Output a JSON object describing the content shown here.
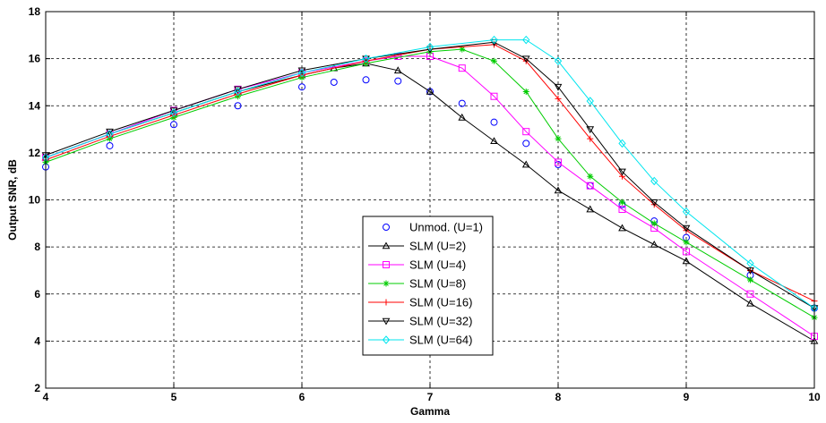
{
  "chart_data": {
    "type": "line",
    "xlabel": "Gamma",
    "ylabel": "Output SNR, dB",
    "xlim": [
      4,
      10
    ],
    "ylim": [
      2,
      18
    ],
    "xticks": [
      4,
      5,
      6,
      7,
      8,
      9,
      10
    ],
    "yticks": [
      2,
      4,
      6,
      8,
      10,
      12,
      14,
      16,
      18
    ],
    "grid": true,
    "legend_position": "center-left",
    "series": [
      {
        "name": "Unmod. (U=1)",
        "color": "#0000ff",
        "marker": "circle",
        "line": false,
        "x": [
          4.0,
          4.5,
          5.0,
          5.5,
          6.0,
          6.25,
          6.5,
          6.75,
          7.0,
          7.25,
          7.5,
          7.75,
          8.0,
          8.25,
          8.5,
          8.75,
          9.0,
          9.5,
          10.0
        ],
        "y": [
          11.4,
          12.3,
          13.2,
          14.0,
          14.8,
          15.0,
          15.1,
          15.05,
          14.6,
          14.1,
          13.3,
          12.4,
          11.5,
          10.6,
          9.8,
          9.1,
          8.4,
          6.8,
          5.4
        ]
      },
      {
        "name": "SLM (U=2)",
        "color": "#000000",
        "marker": "triangle-up",
        "line": true,
        "x": [
          4.0,
          4.5,
          5.0,
          5.5,
          6.0,
          6.25,
          6.5,
          6.75,
          7.0,
          7.25,
          7.5,
          7.75,
          8.0,
          8.25,
          8.5,
          8.75,
          9.0,
          9.5,
          10.0
        ],
        "y": [
          11.8,
          12.8,
          13.7,
          14.6,
          15.3,
          15.6,
          15.8,
          15.5,
          14.6,
          13.5,
          12.5,
          11.5,
          10.4,
          9.6,
          8.8,
          8.1,
          7.4,
          5.6,
          4.0
        ]
      },
      {
        "name": "SLM (U=4)",
        "color": "#ff00ff",
        "marker": "square",
        "line": true,
        "x": [
          4.0,
          4.5,
          5.0,
          5.5,
          6.0,
          6.5,
          6.75,
          7.0,
          7.25,
          7.5,
          7.75,
          8.0,
          8.25,
          8.5,
          8.75,
          9.0,
          9.5,
          10.0
        ],
        "y": [
          11.8,
          12.8,
          13.8,
          14.7,
          15.4,
          15.9,
          16.1,
          16.1,
          15.6,
          14.4,
          12.9,
          11.6,
          10.6,
          9.6,
          8.8,
          7.8,
          6.0,
          4.2
        ]
      },
      {
        "name": "SLM (U=8)",
        "color": "#00cc00",
        "marker": "star",
        "line": true,
        "x": [
          4.0,
          4.5,
          5.0,
          5.5,
          6.0,
          6.5,
          7.0,
          7.25,
          7.5,
          7.75,
          8.0,
          8.25,
          8.5,
          8.75,
          9.0,
          9.5,
          10.0
        ],
        "y": [
          11.6,
          12.6,
          13.5,
          14.4,
          15.2,
          15.8,
          16.3,
          16.4,
          15.9,
          14.6,
          12.6,
          11.0,
          9.9,
          9.0,
          8.2,
          6.6,
          5.0
        ]
      },
      {
        "name": "SLM (U=16)",
        "color": "#ff0000",
        "marker": "plus",
        "line": true,
        "x": [
          4.0,
          4.5,
          5.0,
          5.5,
          6.0,
          6.5,
          7.0,
          7.5,
          7.75,
          8.0,
          8.25,
          8.5,
          8.75,
          9.0,
          9.5,
          10.0
        ],
        "y": [
          11.7,
          12.7,
          13.6,
          14.5,
          15.3,
          15.9,
          16.4,
          16.6,
          15.9,
          14.3,
          12.6,
          11.0,
          9.8,
          8.7,
          7.0,
          5.7
        ]
      },
      {
        "name": "SLM (U=32)",
        "color": "#000000",
        "marker": "triangle-down",
        "line": true,
        "x": [
          4.0,
          4.5,
          5.0,
          5.5,
          6.0,
          6.5,
          7.0,
          7.5,
          7.75,
          8.0,
          8.25,
          8.5,
          8.75,
          9.0,
          9.5,
          10.0
        ],
        "y": [
          11.9,
          12.9,
          13.8,
          14.7,
          15.5,
          16.0,
          16.4,
          16.7,
          16.0,
          14.8,
          13.0,
          11.2,
          9.9,
          8.8,
          7.0,
          5.4
        ]
      },
      {
        "name": "SLM (U=64)",
        "color": "#00e5ee",
        "marker": "diamond",
        "line": true,
        "x": [
          4.0,
          4.5,
          5.0,
          5.5,
          6.0,
          6.5,
          7.0,
          7.5,
          7.75,
          8.0,
          8.25,
          8.5,
          8.75,
          9.0,
          9.5,
          10.0
        ],
        "y": [
          11.8,
          12.8,
          13.7,
          14.6,
          15.4,
          16.0,
          16.5,
          16.8,
          16.8,
          15.9,
          14.2,
          12.4,
          10.8,
          9.5,
          7.3,
          5.4
        ]
      }
    ]
  }
}
